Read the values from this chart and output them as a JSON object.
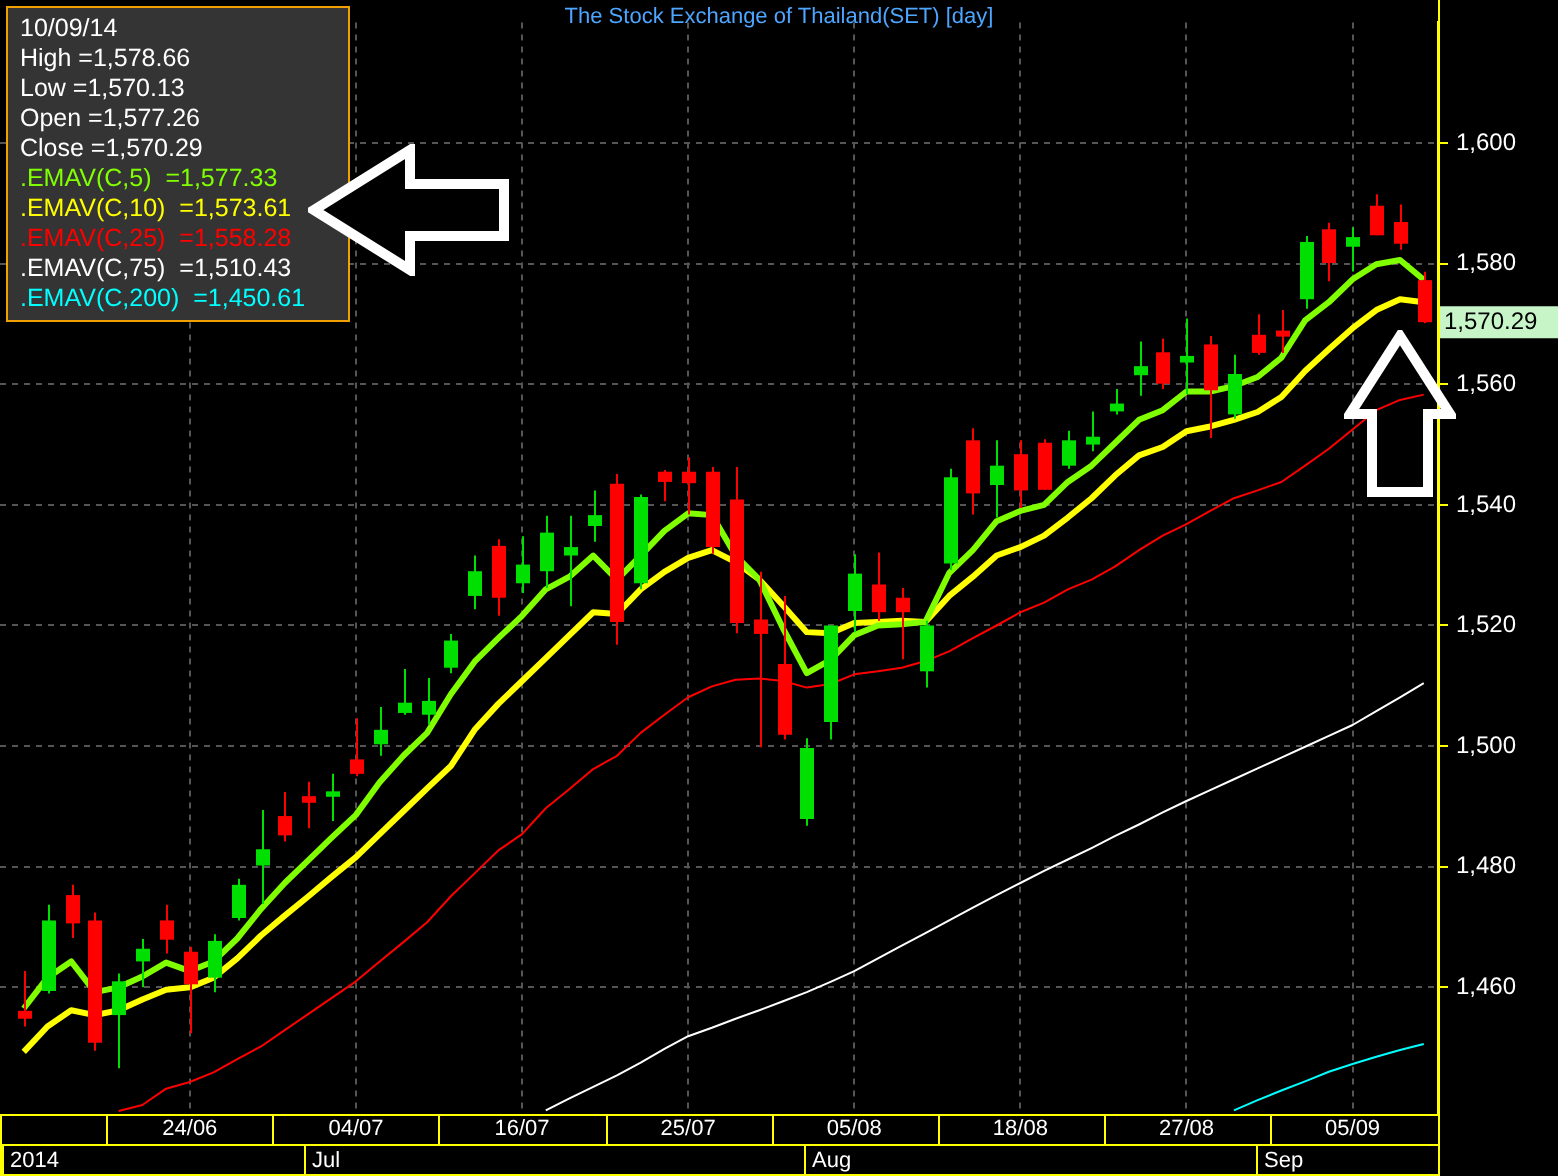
{
  "chart_data": {
    "type": "candlestick",
    "title": "The Stock Exchange of Thailand(SET) [day]",
    "categories": [
      null,
      null,
      null,
      null,
      null,
      null,
      null,
      "24/06",
      null,
      null,
      null,
      null,
      null,
      null,
      "04/07",
      null,
      null,
      null,
      null,
      null,
      null,
      "16/07",
      null,
      null,
      null,
      null,
      null,
      null,
      "25/07",
      null,
      null,
      null,
      null,
      null,
      null,
      "05/08",
      null,
      null,
      null,
      null,
      null,
      null,
      "18/08",
      null,
      null,
      null,
      null,
      null,
      null,
      "27/08",
      null,
      null,
      null,
      null,
      null,
      null,
      "05/09",
      null,
      null,
      null
    ],
    "ohlc": [
      [
        1456.1,
        1462.7,
        1453.5,
        1454.8
      ],
      [
        1459.4,
        1473.7,
        1459.0,
        1471.1
      ],
      [
        1475.3,
        1477.0,
        1468.2,
        1470.6
      ],
      [
        1471.1,
        1472.4,
        1449.5,
        1450.8
      ],
      [
        1455.4,
        1462.3,
        1446.6,
        1461.0
      ],
      [
        1464.3,
        1468.0,
        1460.0,
        1466.4
      ],
      [
        1471.1,
        1473.7,
        1465.6,
        1467.9
      ],
      [
        1465.9,
        1466.7,
        1452.4,
        1460.5
      ],
      [
        1461.6,
        1468.8,
        1459.2,
        1467.7
      ],
      [
        1471.5,
        1478.0,
        1471.1,
        1477.0
      ],
      [
        1480.2,
        1489.4,
        1473.8,
        1482.9
      ],
      [
        1488.4,
        1492.4,
        1484.2,
        1485.2
      ],
      [
        1491.7,
        1494.1,
        1486.4,
        1490.6
      ],
      [
        1491.6,
        1495.4,
        1487.6,
        1492.5
      ],
      [
        1497.8,
        1504.6,
        1495.0,
        1495.4
      ],
      [
        1500.3,
        1506.5,
        1498.4,
        1502.7
      ],
      [
        1505.5,
        1512.8,
        1505.2,
        1507.2
      ],
      [
        1505.2,
        1511.3,
        1503.6,
        1507.5
      ],
      [
        1513.0,
        1518.6,
        1512.1,
        1517.5
      ],
      [
        1524.9,
        1531.6,
        1522.7,
        1529.0
      ],
      [
        1533.2,
        1534.3,
        1521.6,
        1524.6
      ],
      [
        1527.0,
        1534.8,
        1525.4,
        1530.1
      ],
      [
        1529.0,
        1538.2,
        1526.2,
        1535.4
      ],
      [
        1531.6,
        1538.2,
        1523.2,
        1533.0
      ],
      [
        1536.5,
        1542.4,
        1533.9,
        1538.3
      ],
      [
        1543.5,
        1545.1,
        1516.8,
        1520.6
      ],
      [
        1527.0,
        1541.7,
        1526.0,
        1541.3
      ],
      [
        1545.5,
        1545.8,
        1540.6,
        1543.8
      ],
      [
        1545.5,
        1547.9,
        1538.4,
        1543.6
      ],
      [
        1545.5,
        1546.3,
        1531.9,
        1533.0
      ],
      [
        1540.9,
        1546.3,
        1518.7,
        1520.4
      ],
      [
        1521.0,
        1528.9,
        1499.8,
        1518.6
      ],
      [
        1513.6,
        1524.9,
        1501.1,
        1501.9
      ],
      [
        1487.9,
        1501.3,
        1486.8,
        1499.7
      ],
      [
        1504.0,
        1520.0,
        1501.1,
        1520.0
      ],
      [
        1522.4,
        1531.8,
        1518.9,
        1528.6
      ],
      [
        1526.8,
        1532.1,
        1520.8,
        1522.2
      ],
      [
        1524.6,
        1526.2,
        1514.4,
        1522.2
      ],
      [
        1512.4,
        1520.8,
        1509.7,
        1520.0
      ],
      [
        1530.3,
        1546.0,
        1529.2,
        1544.6
      ],
      [
        1550.7,
        1552.7,
        1538.4,
        1541.9
      ],
      [
        1543.3,
        1550.7,
        1537.9,
        1546.5
      ],
      [
        1548.4,
        1550.7,
        1539.5,
        1542.4
      ],
      [
        1550.3,
        1550.9,
        1542.5,
        1542.5
      ],
      [
        1546.5,
        1552.3,
        1546.0,
        1550.7
      ],
      [
        1550.0,
        1555.5,
        1548.9,
        1551.3
      ],
      [
        1555.5,
        1559.2,
        1555.0,
        1556.8
      ],
      [
        1561.5,
        1567.1,
        1558.1,
        1563.0
      ],
      [
        1565.3,
        1567.6,
        1559.2,
        1560.1
      ],
      [
        1563.6,
        1570.9,
        1558.4,
        1564.7
      ],
      [
        1566.6,
        1568.0,
        1551.1,
        1559.0
      ],
      [
        1555.0,
        1564.9,
        1554.3,
        1561.7
      ],
      [
        1568.2,
        1571.6,
        1564.9,
        1565.2
      ],
      [
        1568.9,
        1572.3,
        1565.2,
        1567.9
      ],
      [
        1574.1,
        1584.6,
        1572.5,
        1583.6
      ],
      [
        1585.7,
        1586.8,
        1577.1,
        1580.1
      ],
      [
        1582.8,
        1586.0,
        1578.7,
        1584.4
      ],
      [
        1589.6,
        1591.5,
        1584.7,
        1584.7
      ],
      [
        1586.9,
        1589.8,
        1582.3,
        1583.3
      ],
      [
        1577.26,
        1578.66,
        1570.13,
        1570.29
      ]
    ],
    "colors": [
      "#ff0000",
      "#00e000",
      "#ff0000",
      "#ff0000",
      "#00e000",
      "#00e000",
      "#ff0000",
      "#ff0000",
      "#00e000",
      "#00e000",
      "#00e000",
      "#ff0000",
      "#ff0000",
      "#00e000",
      "#ff0000",
      "#00e000",
      "#00e000",
      "#00e000",
      "#00e000",
      "#00e000",
      "#ff0000",
      "#00e000",
      "#00e000",
      "#00e000",
      "#00e000",
      "#ff0000",
      "#00e000",
      "#ff0000",
      "#ff0000",
      "#ff0000",
      "#ff0000",
      "#ff0000",
      "#ff0000",
      "#00e000",
      "#00e000",
      "#00e000",
      "#ff0000",
      "#ff0000",
      "#00e000",
      "#00e000",
      "#ff0000",
      "#00e000",
      "#ff0000",
      "#ff0000",
      "#00e000",
      "#00e000",
      "#00e000",
      "#00e000",
      "#ff0000",
      "#00e000",
      "#ff0000",
      "#00e000",
      "#ff0000",
      "#ff0000",
      "#00e000",
      "#ff0000",
      "#00e000",
      "#ff0000",
      "#ff0000",
      "#ff0000"
    ],
    "series": [
      {
        "type": "line",
        "name": ".EMAV(C,5)  =1,577.33",
        "color": "#80ff00",
        "values": [
          1456.5,
          1461.6,
          1464.3,
          1459.2,
          1460.0,
          1461.8,
          1464.1,
          1462.7,
          1464.3,
          1468.1,
          1473.0,
          1477.3,
          1481.1,
          1484.9,
          1488.6,
          1494.0,
          1498.4,
          1502.2,
          1508.6,
          1514.0,
          1517.9,
          1521.6,
          1526.0,
          1528.1,
          1531.6,
          1527.6,
          1531.6,
          1535.7,
          1538.6,
          1538.3,
          1531.6,
          1527.6,
          1519.5,
          1512.1,
          1514.3,
          1518.4,
          1520.0,
          1520.2,
          1520.6,
          1528.7,
          1532.5,
          1537.3,
          1539.0,
          1540.0,
          1543.8,
          1546.5,
          1550.3,
          1554.1,
          1555.7,
          1558.8,
          1558.8,
          1559.7,
          1561.2,
          1564.4,
          1570.6,
          1573.6,
          1577.4,
          1579.9,
          1580.6,
          1577.33
        ]
      },
      {
        "type": "line",
        "name": ".EMAV(C,10)  =1,573.61",
        "color": "#ffff00",
        "values": [
          1449.3,
          1453.5,
          1456.2,
          1455.4,
          1456.2,
          1458.0,
          1459.6,
          1460.0,
          1461.6,
          1464.8,
          1468.6,
          1471.9,
          1475.1,
          1478.4,
          1481.6,
          1485.4,
          1489.2,
          1493.0,
          1496.7,
          1502.7,
          1507.0,
          1510.8,
          1514.6,
          1518.4,
          1522.2,
          1521.9,
          1526.0,
          1528.9,
          1531.2,
          1532.5,
          1530.5,
          1527.6,
          1523.3,
          1518.9,
          1518.7,
          1520.4,
          1520.6,
          1520.8,
          1520.6,
          1524.9,
          1528.1,
          1531.6,
          1533.0,
          1534.9,
          1537.9,
          1541.1,
          1544.9,
          1548.2,
          1549.6,
          1552.2,
          1553.0,
          1554.1,
          1555.4,
          1557.9,
          1562.2,
          1565.8,
          1569.3,
          1572.3,
          1574.1,
          1573.61
        ]
      },
      {
        "type": "line",
        "name": ".EMAV(C,25)  =1,558.28",
        "color": "#ff0000",
        "values": [
          null,
          null,
          null,
          null,
          1439.5,
          1440.5,
          1443.2,
          1444.3,
          1445.9,
          1448.1,
          1450.2,
          1452.9,
          1455.6,
          1458.3,
          1461.0,
          1464.3,
          1467.5,
          1470.8,
          1475.1,
          1478.9,
          1482.7,
          1485.4,
          1489.7,
          1492.9,
          1496.2,
          1498.4,
          1502.2,
          1505.2,
          1508.1,
          1509.9,
          1511.0,
          1511.2,
          1510.8,
          1509.7,
          1510.3,
          1511.9,
          1512.4,
          1513.0,
          1514.1,
          1515.7,
          1517.9,
          1520.0,
          1522.2,
          1523.8,
          1526.0,
          1527.6,
          1529.8,
          1532.5,
          1534.9,
          1536.8,
          1539.0,
          1541.1,
          1542.4,
          1543.8,
          1546.5,
          1549.3,
          1552.5,
          1555.7,
          1557.4,
          1558.28
        ]
      },
      {
        "type": "line",
        "name": ".EMAV(C,75)  =1,510.43",
        "color": "#ffffff",
        "values": [
          null,
          null,
          null,
          null,
          null,
          null,
          null,
          null,
          null,
          null,
          null,
          null,
          null,
          null,
          null,
          null,
          null,
          null,
          null,
          null,
          null,
          null,
          1439.6,
          1441.6,
          1443.5,
          1445.4,
          1447.5,
          1449.8,
          1451.9,
          1453.3,
          1454.8,
          1456.2,
          1457.7,
          1459.2,
          1460.9,
          1462.7,
          1464.8,
          1466.9,
          1469.0,
          1471.1,
          1473.2,
          1475.3,
          1477.3,
          1479.3,
          1481.2,
          1483.1,
          1485.1,
          1487.0,
          1489.0,
          1490.9,
          1492.7,
          1494.5,
          1496.3,
          1498.1,
          1499.9,
          1501.7,
          1503.5,
          1505.8,
          1508.1,
          1510.43
        ]
      },
      {
        "type": "line",
        "name": ".EMAV(C,200)  =1,450.61",
        "color": "#00ffff",
        "values": [
          null,
          null,
          null,
          null,
          null,
          null,
          null,
          null,
          null,
          null,
          null,
          null,
          null,
          null,
          null,
          null,
          null,
          null,
          null,
          null,
          null,
          null,
          null,
          null,
          null,
          null,
          null,
          null,
          null,
          null,
          null,
          null,
          null,
          null,
          null,
          null,
          null,
          null,
          null,
          null,
          null,
          null,
          null,
          null,
          null,
          null,
          null,
          null,
          null,
          null,
          null,
          1439.6,
          1441.3,
          1442.9,
          1444.4,
          1446.0,
          1447.3,
          1448.5,
          1449.6,
          1450.61
        ]
      }
    ],
    "ylim": [
      1439,
      1620
    ],
    "yticks": [
      {
        "value": 1460,
        "label": "1,460"
      },
      {
        "value": 1480,
        "label": "1,480"
      },
      {
        "value": 1500,
        "label": "1,500"
      },
      {
        "value": 1520,
        "label": "1,520"
      },
      {
        "value": 1540,
        "label": "1,540"
      },
      {
        "value": 1560,
        "label": "1,560"
      },
      {
        "value": 1580,
        "label": "1,580"
      },
      {
        "value": 1600,
        "label": "1,600"
      }
    ],
    "annotations": [
      "10/09/14",
      "High =1,578.66",
      "Low =1,570.13",
      "Open =1,577.26",
      "Close =1,570.29",
      "2014",
      "Jul",
      "Aug",
      "Sep",
      "1,570.29"
    ],
    "grid": true,
    "legend": "top left",
    "marker": "none"
  }
}
